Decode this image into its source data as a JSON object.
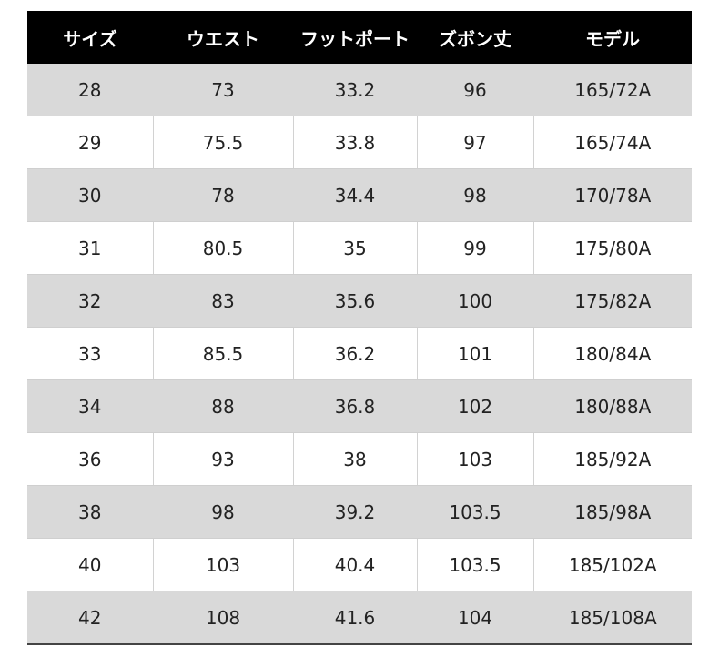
{
  "headers": [
    "サイズ",
    "ウエスト",
    "フットポート",
    "ズボン丈",
    "モデル"
  ],
  "rows": [
    [
      "28",
      "73",
      "33.2",
      "96",
      "165/72A"
    ],
    [
      "29",
      "75.5",
      "33.8",
      "97",
      "165/74A"
    ],
    [
      "30",
      "78",
      "34.4",
      "98",
      "170/78A"
    ],
    [
      "31",
      "80.5",
      "35",
      "99",
      "175/80A"
    ],
    [
      "32",
      "83",
      "35.6",
      "100",
      "175/82A"
    ],
    [
      "33",
      "85.5",
      "36.2",
      "101",
      "180/84A"
    ],
    [
      "34",
      "88",
      "36.8",
      "102",
      "180/88A"
    ],
    [
      "36",
      "93",
      "38",
      "103",
      "185/92A"
    ],
    [
      "38",
      "98",
      "39.2",
      "103.5",
      "185/98A"
    ],
    [
      "40",
      "103",
      "40.4",
      "103.5",
      "185/102A"
    ],
    [
      "42",
      "108",
      "41.6",
      "104",
      "185/108A"
    ]
  ],
  "colors": {
    "header_bg": "#000000",
    "header_text": "#ffffff",
    "shaded_row": "#d9d9d9",
    "plain_row": "#ffffff"
  }
}
